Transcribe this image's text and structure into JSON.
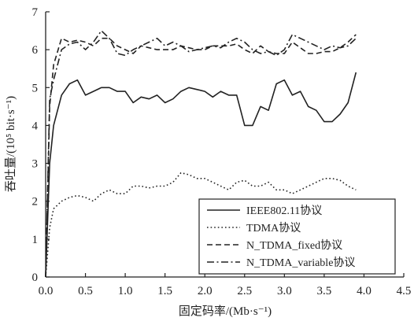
{
  "chart_data": {
    "type": "line",
    "title": "",
    "xlabel": "固定码率/(Mb·s⁻¹)",
    "ylabel": "吞吐量/(10⁵ bit·s⁻¹)",
    "xlim": [
      0,
      4.5
    ],
    "ylim": [
      0,
      7
    ],
    "x_ticks": [
      "0.0",
      "0.5",
      "1.0",
      "1.5",
      "2.0",
      "2.5",
      "3.0",
      "3.5",
      "4.0",
      "4.5"
    ],
    "y_ticks": [
      "0",
      "1",
      "2",
      "3",
      "4",
      "5",
      "6",
      "7"
    ],
    "grid": false,
    "legend_position": "bottom-right",
    "series": [
      {
        "name": "IEEE802.11协议",
        "style": "solid",
        "x": [
          0,
          0.05,
          0.1,
          0.2,
          0.3,
          0.4,
          0.5,
          0.6,
          0.7,
          0.8,
          0.9,
          1.0,
          1.1,
          1.2,
          1.3,
          1.4,
          1.5,
          1.6,
          1.7,
          1.8,
          1.9,
          2.0,
          2.1,
          2.2,
          2.3,
          2.4,
          2.5,
          2.6,
          2.7,
          2.8,
          2.9,
          3.0,
          3.1,
          3.2,
          3.3,
          3.4,
          3.5,
          3.6,
          3.7,
          3.8,
          3.9
        ],
        "y": [
          0,
          3.0,
          4.0,
          4.8,
          5.1,
          5.2,
          4.8,
          4.9,
          5.0,
          5.0,
          4.9,
          4.9,
          4.6,
          4.75,
          4.7,
          4.8,
          4.6,
          4.7,
          4.9,
          5.0,
          4.95,
          4.9,
          4.75,
          4.9,
          4.8,
          4.8,
          4.0,
          4.0,
          4.5,
          4.4,
          5.1,
          5.2,
          4.8,
          4.9,
          4.5,
          4.4,
          4.1,
          4.1,
          4.3,
          4.6,
          5.4
        ]
      },
      {
        "name": "TDMA协议",
        "style": "dotted",
        "x": [
          0,
          0.05,
          0.1,
          0.2,
          0.3,
          0.4,
          0.5,
          0.6,
          0.7,
          0.8,
          0.9,
          1.0,
          1.1,
          1.2,
          1.3,
          1.4,
          1.5,
          1.6,
          1.7,
          1.8,
          1.9,
          2.0,
          2.1,
          2.2,
          2.3,
          2.4,
          2.5,
          2.6,
          2.7,
          2.8,
          2.9,
          3.0,
          3.1,
          3.2,
          3.3,
          3.4,
          3.5,
          3.6,
          3.7,
          3.8,
          3.9
        ],
        "y": [
          0,
          1.3,
          1.8,
          2.0,
          2.1,
          2.15,
          2.1,
          2.0,
          2.2,
          2.3,
          2.2,
          2.2,
          2.4,
          2.4,
          2.35,
          2.4,
          2.4,
          2.5,
          2.75,
          2.7,
          2.6,
          2.6,
          2.5,
          2.4,
          2.3,
          2.5,
          2.55,
          2.4,
          2.4,
          2.5,
          2.3,
          2.3,
          2.2,
          2.3,
          2.4,
          2.5,
          2.6,
          2.6,
          2.55,
          2.4,
          2.3
        ]
      },
      {
        "name": "N_TDMA_fixed协议",
        "style": "dashed",
        "x": [
          0,
          0.05,
          0.1,
          0.2,
          0.3,
          0.4,
          0.5,
          0.6,
          0.7,
          0.8,
          0.9,
          1.0,
          1.1,
          1.2,
          1.3,
          1.4,
          1.5,
          1.6,
          1.7,
          1.8,
          1.9,
          2.0,
          2.1,
          2.2,
          2.3,
          2.4,
          2.5,
          2.6,
          2.7,
          2.8,
          2.9,
          3.0,
          3.1,
          3.2,
          3.3,
          3.4,
          3.5,
          3.6,
          3.7,
          3.8,
          3.9
        ],
        "y": [
          0,
          4.5,
          5.6,
          6.3,
          6.2,
          6.25,
          6.2,
          6.1,
          6.3,
          6.3,
          6.1,
          6.0,
          5.9,
          6.1,
          6.05,
          6.0,
          6.0,
          6.0,
          6.1,
          6.05,
          6.0,
          6.0,
          6.1,
          6.1,
          6.1,
          6.15,
          6.0,
          5.9,
          6.1,
          5.95,
          5.9,
          5.9,
          6.2,
          6.05,
          5.9,
          5.9,
          5.95,
          5.95,
          6.05,
          6.2,
          6.4
        ]
      },
      {
        "name": "N_TDMA_variable协议",
        "style": "dashdot",
        "x": [
          0,
          0.05,
          0.1,
          0.2,
          0.3,
          0.4,
          0.5,
          0.6,
          0.7,
          0.8,
          0.9,
          1.0,
          1.1,
          1.2,
          1.3,
          1.4,
          1.5,
          1.6,
          1.7,
          1.8,
          1.9,
          2.0,
          2.1,
          2.2,
          2.3,
          2.4,
          2.5,
          2.6,
          2.7,
          2.8,
          2.9,
          3.0,
          3.1,
          3.2,
          3.3,
          3.4,
          3.5,
          3.6,
          3.7,
          3.8,
          3.9
        ],
        "y": [
          0,
          4.7,
          5.2,
          6.0,
          6.15,
          6.2,
          6.0,
          6.2,
          6.5,
          6.3,
          5.9,
          5.85,
          6.0,
          6.1,
          6.2,
          6.3,
          6.1,
          6.2,
          6.1,
          5.95,
          6.0,
          6.05,
          6.1,
          6.05,
          6.2,
          6.3,
          6.2,
          6.0,
          5.9,
          5.95,
          5.85,
          6.0,
          6.4,
          6.3,
          6.2,
          6.1,
          6.0,
          6.1,
          6.05,
          6.1,
          6.3
        ]
      }
    ]
  }
}
